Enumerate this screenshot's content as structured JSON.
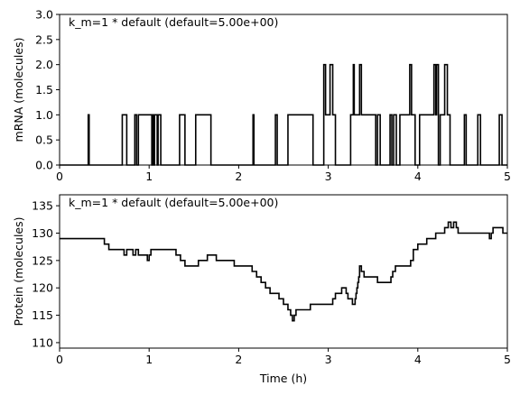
{
  "figure": {
    "background": "#ffffff",
    "line_color": "#000000"
  },
  "chart_data": [
    {
      "type": "line",
      "step": true,
      "annotation": "k_m=1 * default (default=5.00e+00)",
      "xlabel": "",
      "ylabel": "mRNA (molecules)",
      "xlim": [
        0,
        5
      ],
      "ylim": [
        0,
        3
      ],
      "xticks": [
        0,
        1,
        2,
        3,
        4,
        5
      ],
      "xtick_labels": [
        "0",
        "1",
        "2",
        "3",
        "4",
        "5"
      ],
      "yticks": [
        0,
        0.5,
        1,
        1.5,
        2,
        2.5,
        3
      ],
      "ytick_labels": [
        "0.0",
        "0.5",
        "1.0",
        "1.5",
        "2.0",
        "2.5",
        "3.0"
      ],
      "grid": false,
      "series": [
        {
          "x": [
            0,
            0.32,
            0.33,
            0.7,
            0.75,
            0.84,
            0.86,
            0.88,
            1.03,
            1.04,
            1.05,
            1.06,
            1.09,
            1.1,
            1.13,
            1.34,
            1.4,
            1.52,
            1.69,
            2.16,
            2.17,
            2.41,
            2.43,
            2.55,
            2.83,
            2.95,
            2.97,
            3.02,
            3.05,
            3.08,
            3.25,
            3.28,
            3.29,
            3.35,
            3.37,
            3.53,
            3.55,
            3.58,
            3.69,
            3.71,
            3.73,
            3.76,
            3.8,
            3.91,
            3.93,
            3.97,
            4.02,
            4.18,
            4.2,
            4.21,
            4.23,
            4.25,
            4.3,
            4.33,
            4.36,
            4.52,
            4.54,
            4.67,
            4.7,
            4.91,
            4.94,
            5.0
          ],
          "y": [
            0,
            1,
            0,
            1,
            0,
            1,
            0,
            1,
            0,
            1,
            0,
            1,
            0,
            1,
            0,
            1,
            0,
            1,
            0,
            1,
            0,
            1,
            0,
            1,
            0,
            2,
            1,
            2,
            1,
            0,
            1,
            2,
            1,
            2,
            1,
            0,
            1,
            0,
            1,
            0,
            1,
            0,
            1,
            2,
            1,
            0,
            1,
            2,
            1,
            2,
            0,
            1,
            2,
            1,
            0,
            1,
            0,
            1,
            0,
            1,
            0,
            0
          ]
        }
      ]
    },
    {
      "type": "line",
      "step": true,
      "annotation": "k_m=1 * default (default=5.00e+00)",
      "xlabel": "Time (h)",
      "ylabel": "Protein (molecules)",
      "xlim": [
        0,
        5
      ],
      "ylim": [
        109,
        137
      ],
      "xticks": [
        0,
        1,
        2,
        3,
        4,
        5
      ],
      "xtick_labels": [
        "0",
        "1",
        "2",
        "3",
        "4",
        "5"
      ],
      "yticks": [
        110,
        115,
        120,
        125,
        130,
        135
      ],
      "ytick_labels": [
        "110",
        "115",
        "120",
        "125",
        "130",
        "135"
      ],
      "grid": false,
      "series": [
        {
          "x": [
            0,
            0.5,
            0.55,
            0.72,
            0.75,
            0.82,
            0.85,
            0.88,
            0.95,
            0.98,
            1.0,
            1.02,
            1.04,
            1.3,
            1.35,
            1.38,
            1.4,
            1.55,
            1.6,
            1.65,
            1.75,
            1.95,
            2.15,
            2.2,
            2.25,
            2.3,
            2.35,
            2.38,
            2.4,
            2.45,
            2.5,
            2.52,
            2.55,
            2.58,
            2.6,
            2.62,
            2.64,
            2.66,
            2.8,
            3.0,
            3.05,
            3.08,
            3.15,
            3.17,
            3.2,
            3.22,
            3.25,
            3.27,
            3.3,
            3.31,
            3.32,
            3.33,
            3.34,
            3.35,
            3.37,
            3.4,
            3.45,
            3.55,
            3.7,
            3.72,
            3.75,
            3.78,
            3.92,
            3.95,
            4.0,
            4.05,
            4.1,
            4.18,
            4.2,
            4.22,
            4.3,
            4.34,
            4.35,
            4.37,
            4.4,
            4.43,
            4.45,
            4.5,
            4.8,
            4.82,
            4.84,
            4.86,
            4.9,
            4.95,
            4.97,
            5.0
          ],
          "y": [
            129,
            128,
            127,
            126,
            127,
            126,
            127,
            126,
            126,
            125,
            126,
            127,
            127,
            126,
            125,
            125,
            124,
            125,
            125,
            126,
            125,
            124,
            123,
            122,
            121,
            120,
            119,
            119,
            119,
            118,
            117,
            117,
            116,
            115,
            114,
            115,
            116,
            116,
            117,
            117,
            118,
            119,
            120,
            120,
            119,
            118,
            118,
            117,
            118,
            119,
            120,
            121,
            122,
            124,
            123,
            122,
            122,
            121,
            122,
            123,
            124,
            124,
            125,
            127,
            128,
            128,
            129,
            129,
            130,
            130,
            131,
            132,
            132,
            131,
            132,
            131,
            130,
            130,
            129,
            130,
            131,
            131,
            131,
            130,
            130,
            130
          ]
        }
      ]
    }
  ]
}
